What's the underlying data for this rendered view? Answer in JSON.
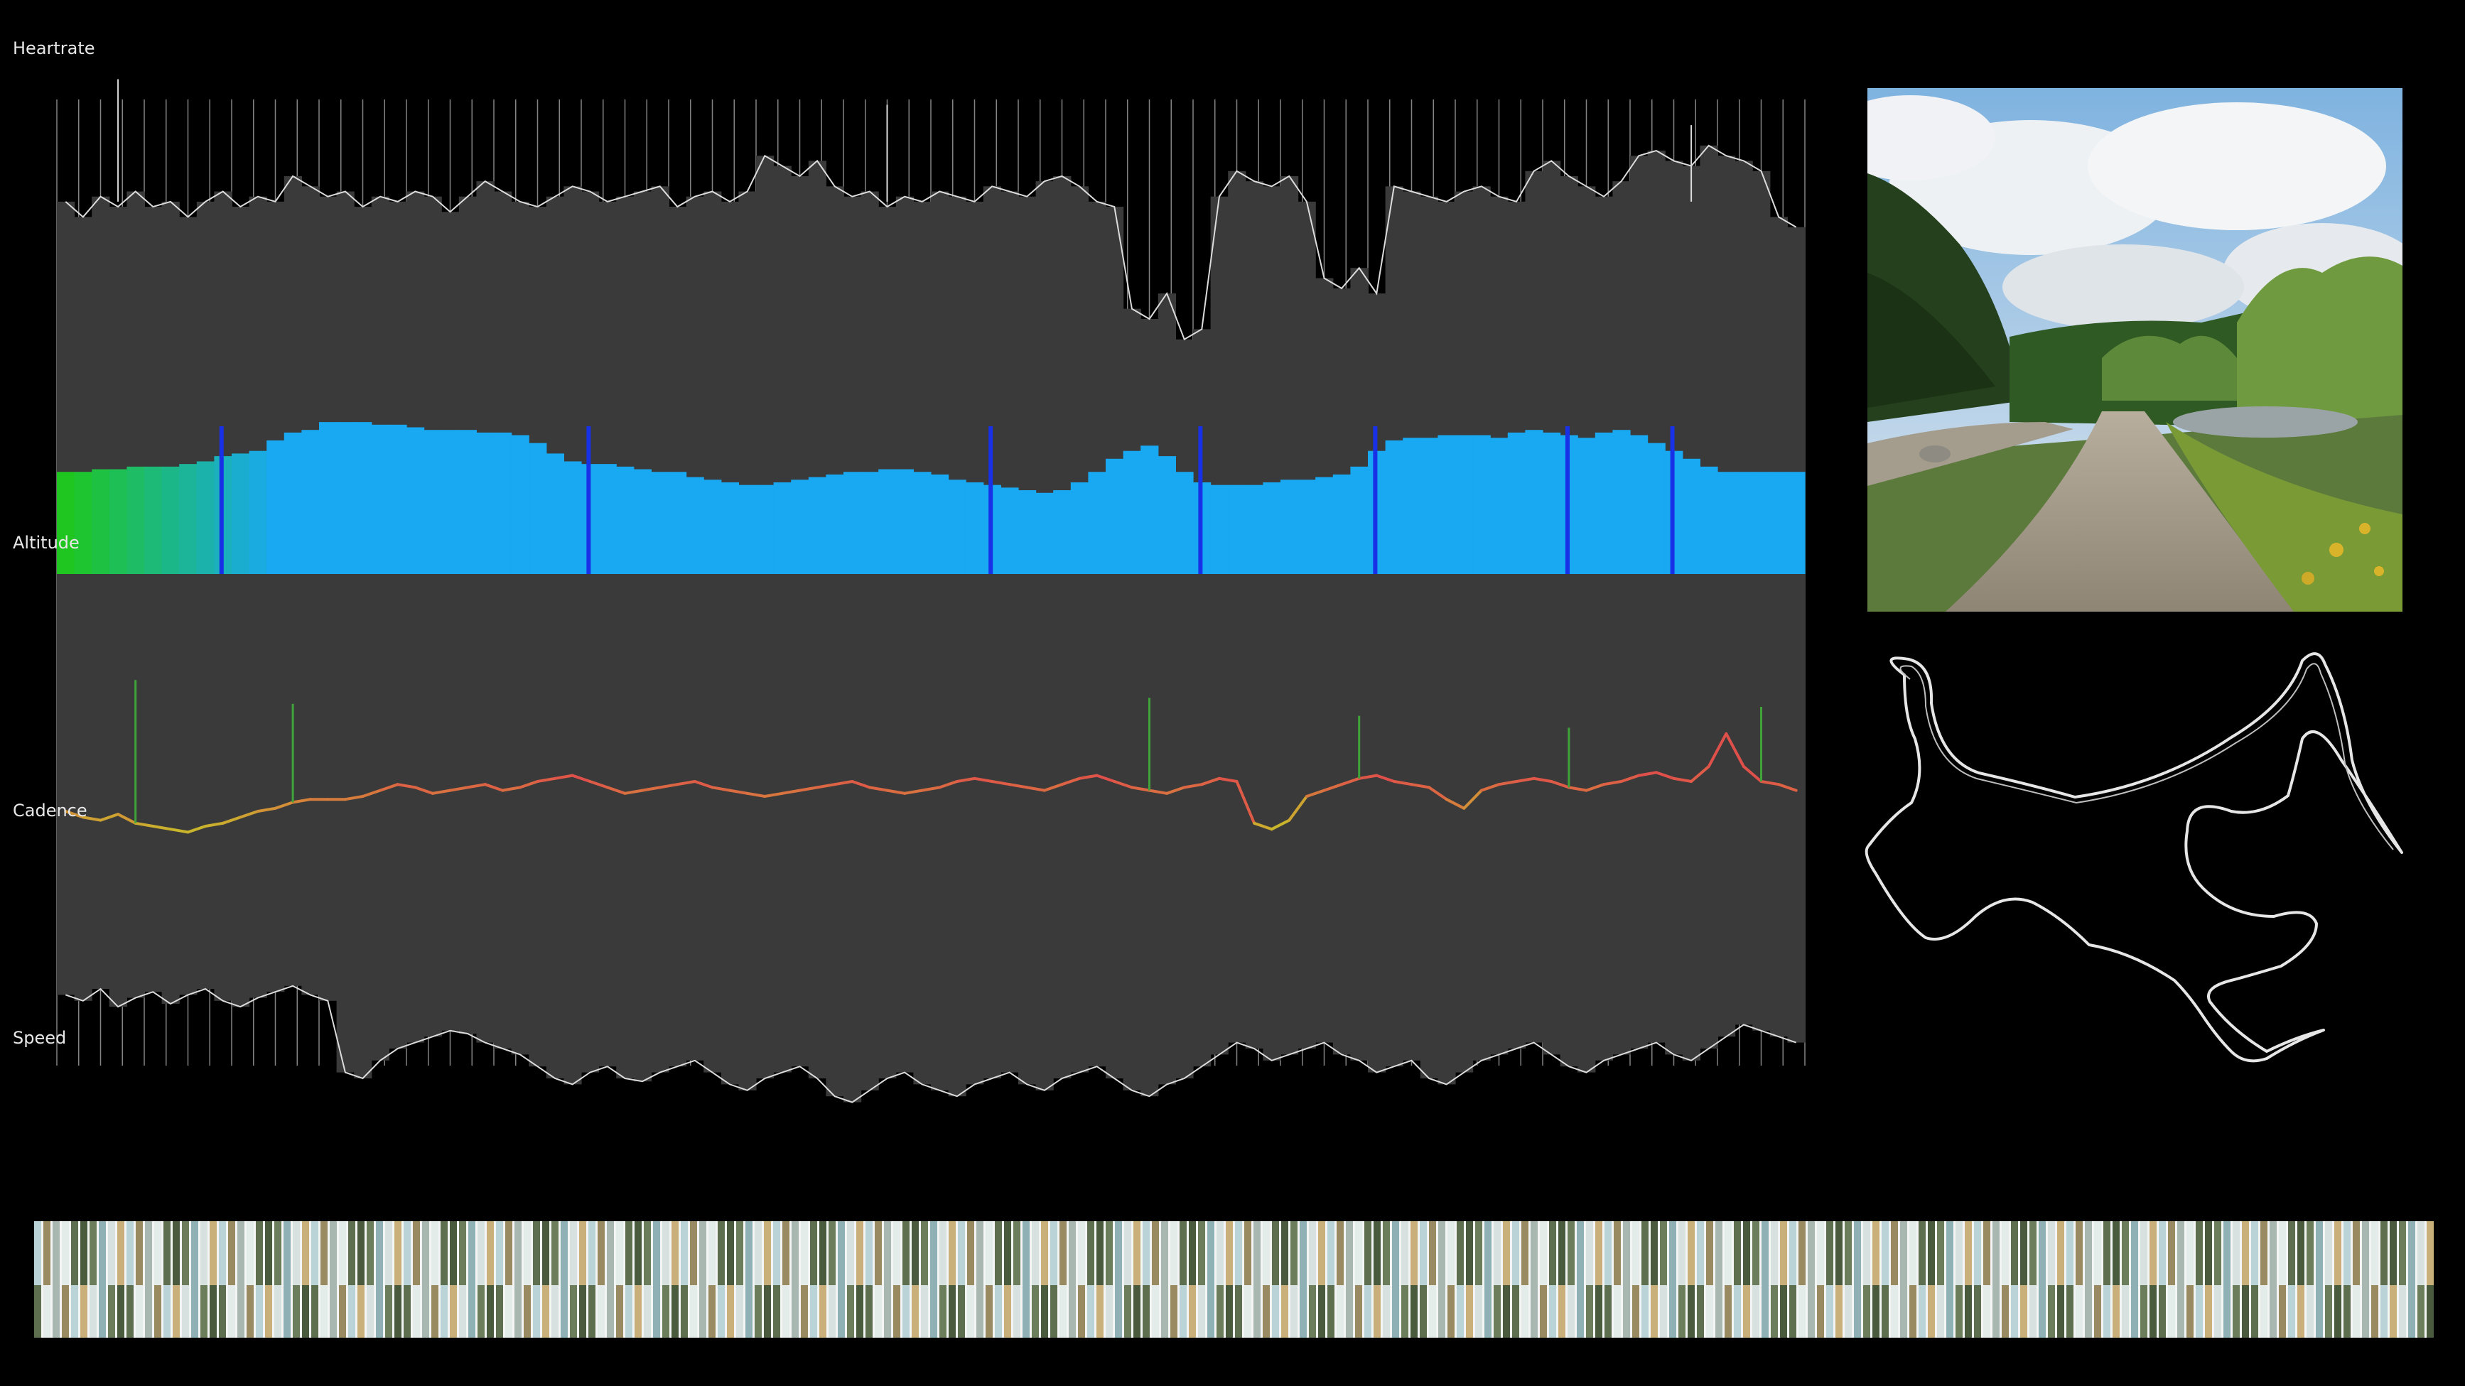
{
  "labels": {
    "heartrate": "Heartrate",
    "altitude": "Altitude",
    "cadence": "Cadence",
    "speed": "Speed"
  },
  "colors": {
    "background": "#000000",
    "bars": "#3a3a3a",
    "separator": "#9a9a9a",
    "trace": "#dcdcdc",
    "altitude_low": "#1fc61f",
    "altitude_high": "#19a8f2",
    "altitude_peak": "#1830e6",
    "cadence_low": "#c9b52c",
    "cadence_high": "#e0504a",
    "map_route": "#e6e6e6"
  },
  "chart_data": {
    "type": "area",
    "title": "",
    "series": [
      {
        "name": "Heartrate",
        "values": [
          0.73,
          0.7,
          0.74,
          0.72,
          0.75,
          0.72,
          0.73,
          0.7,
          0.73,
          0.75,
          0.72,
          0.74,
          0.73,
          0.78,
          0.76,
          0.74,
          0.75,
          0.72,
          0.74,
          0.73,
          0.75,
          0.74,
          0.71,
          0.74,
          0.77,
          0.75,
          0.73,
          0.72,
          0.74,
          0.76,
          0.75,
          0.73,
          0.74,
          0.75,
          0.76,
          0.72,
          0.74,
          0.75,
          0.73,
          0.75,
          0.82,
          0.8,
          0.78,
          0.81,
          0.76,
          0.74,
          0.75,
          0.72,
          0.74,
          0.73,
          0.75,
          0.74,
          0.73,
          0.76,
          0.75,
          0.74,
          0.77,
          0.78,
          0.76,
          0.73,
          0.72,
          0.52,
          0.5,
          0.55,
          0.46,
          0.48,
          0.74,
          0.79,
          0.77,
          0.76,
          0.78,
          0.73,
          0.58,
          0.56,
          0.6,
          0.55,
          0.76,
          0.75,
          0.74,
          0.73,
          0.75,
          0.76,
          0.74,
          0.73,
          0.79,
          0.81,
          0.78,
          0.76,
          0.74,
          0.77,
          0.82,
          0.83,
          0.81,
          0.8,
          0.84,
          0.82,
          0.81,
          0.79,
          0.7,
          0.68
        ],
        "spikes": [
          0.97,
          0.92,
          0.88
        ]
      },
      {
        "name": "Altitude",
        "values": [
          0.8,
          0.8,
          0.81,
          0.81,
          0.82,
          0.82,
          0.82,
          0.83,
          0.84,
          0.86,
          0.87,
          0.88,
          0.92,
          0.95,
          0.96,
          0.99,
          0.99,
          0.99,
          0.98,
          0.98,
          0.97,
          0.96,
          0.96,
          0.96,
          0.95,
          0.95,
          0.94,
          0.91,
          0.87,
          0.84,
          0.83,
          0.83,
          0.82,
          0.81,
          0.8,
          0.8,
          0.78,
          0.77,
          0.76,
          0.75,
          0.75,
          0.76,
          0.77,
          0.78,
          0.79,
          0.8,
          0.8,
          0.81,
          0.81,
          0.8,
          0.79,
          0.77,
          0.76,
          0.75,
          0.74,
          0.73,
          0.72,
          0.73,
          0.76,
          0.8,
          0.85,
          0.88,
          0.9,
          0.86,
          0.8,
          0.76,
          0.75,
          0.75,
          0.75,
          0.76,
          0.77,
          0.77,
          0.78,
          0.79,
          0.82,
          0.88,
          0.92,
          0.93,
          0.93,
          0.94,
          0.94,
          0.94,
          0.93,
          0.95,
          0.96,
          0.95,
          0.94,
          0.93,
          0.95,
          0.96,
          0.94,
          0.91,
          0.88,
          0.85,
          0.82,
          0.8,
          0.8,
          0.8,
          0.8,
          0.8
        ]
      },
      {
        "name": "Cadence",
        "values": [
          0.4,
          0.38,
          0.37,
          0.39,
          0.36,
          0.35,
          0.34,
          0.33,
          0.35,
          0.36,
          0.38,
          0.4,
          0.41,
          0.43,
          0.44,
          0.44,
          0.44,
          0.45,
          0.47,
          0.49,
          0.48,
          0.46,
          0.47,
          0.48,
          0.49,
          0.47,
          0.48,
          0.5,
          0.51,
          0.52,
          0.5,
          0.48,
          0.46,
          0.47,
          0.48,
          0.49,
          0.5,
          0.48,
          0.47,
          0.46,
          0.45,
          0.46,
          0.47,
          0.48,
          0.49,
          0.5,
          0.48,
          0.47,
          0.46,
          0.47,
          0.48,
          0.5,
          0.51,
          0.5,
          0.49,
          0.48,
          0.47,
          0.49,
          0.51,
          0.52,
          0.5,
          0.48,
          0.47,
          0.46,
          0.48,
          0.49,
          0.51,
          0.5,
          0.36,
          0.34,
          0.37,
          0.45,
          0.47,
          0.49,
          0.51,
          0.52,
          0.5,
          0.49,
          0.48,
          0.44,
          0.41,
          0.47,
          0.49,
          0.5,
          0.51,
          0.5,
          0.48,
          0.47,
          0.49,
          0.5,
          0.52,
          0.53,
          0.51,
          0.5,
          0.55,
          0.66,
          0.55,
          0.5,
          0.49,
          0.47
        ],
        "spikes": [
          0.84,
          0.76,
          0.78,
          0.72,
          0.68,
          0.75
        ]
      },
      {
        "name": "Speed",
        "values": [
          0.38,
          0.36,
          0.4,
          0.34,
          0.37,
          0.39,
          0.35,
          0.38,
          0.4,
          0.36,
          0.34,
          0.37,
          0.39,
          0.41,
          0.38,
          0.36,
          0.12,
          0.1,
          0.16,
          0.2,
          0.22,
          0.24,
          0.26,
          0.25,
          0.22,
          0.2,
          0.18,
          0.14,
          0.1,
          0.08,
          0.12,
          0.14,
          0.1,
          0.09,
          0.12,
          0.14,
          0.16,
          0.12,
          0.08,
          0.06,
          0.1,
          0.12,
          0.14,
          0.1,
          0.04,
          0.02,
          0.06,
          0.1,
          0.12,
          0.08,
          0.06,
          0.04,
          0.08,
          0.1,
          0.12,
          0.08,
          0.06,
          0.1,
          0.12,
          0.14,
          0.1,
          0.06,
          0.04,
          0.08,
          0.1,
          0.14,
          0.18,
          0.22,
          0.2,
          0.16,
          0.18,
          0.2,
          0.22,
          0.18,
          0.16,
          0.12,
          0.14,
          0.16,
          0.1,
          0.08,
          0.12,
          0.16,
          0.18,
          0.2,
          0.22,
          0.18,
          0.14,
          0.12,
          0.16,
          0.18,
          0.2,
          0.22,
          0.18,
          0.16,
          0.2,
          0.24,
          0.28,
          0.26,
          0.24,
          0.22
        ]
      }
    ],
    "separators": 80,
    "grid": false,
    "legend": "none"
  }
}
